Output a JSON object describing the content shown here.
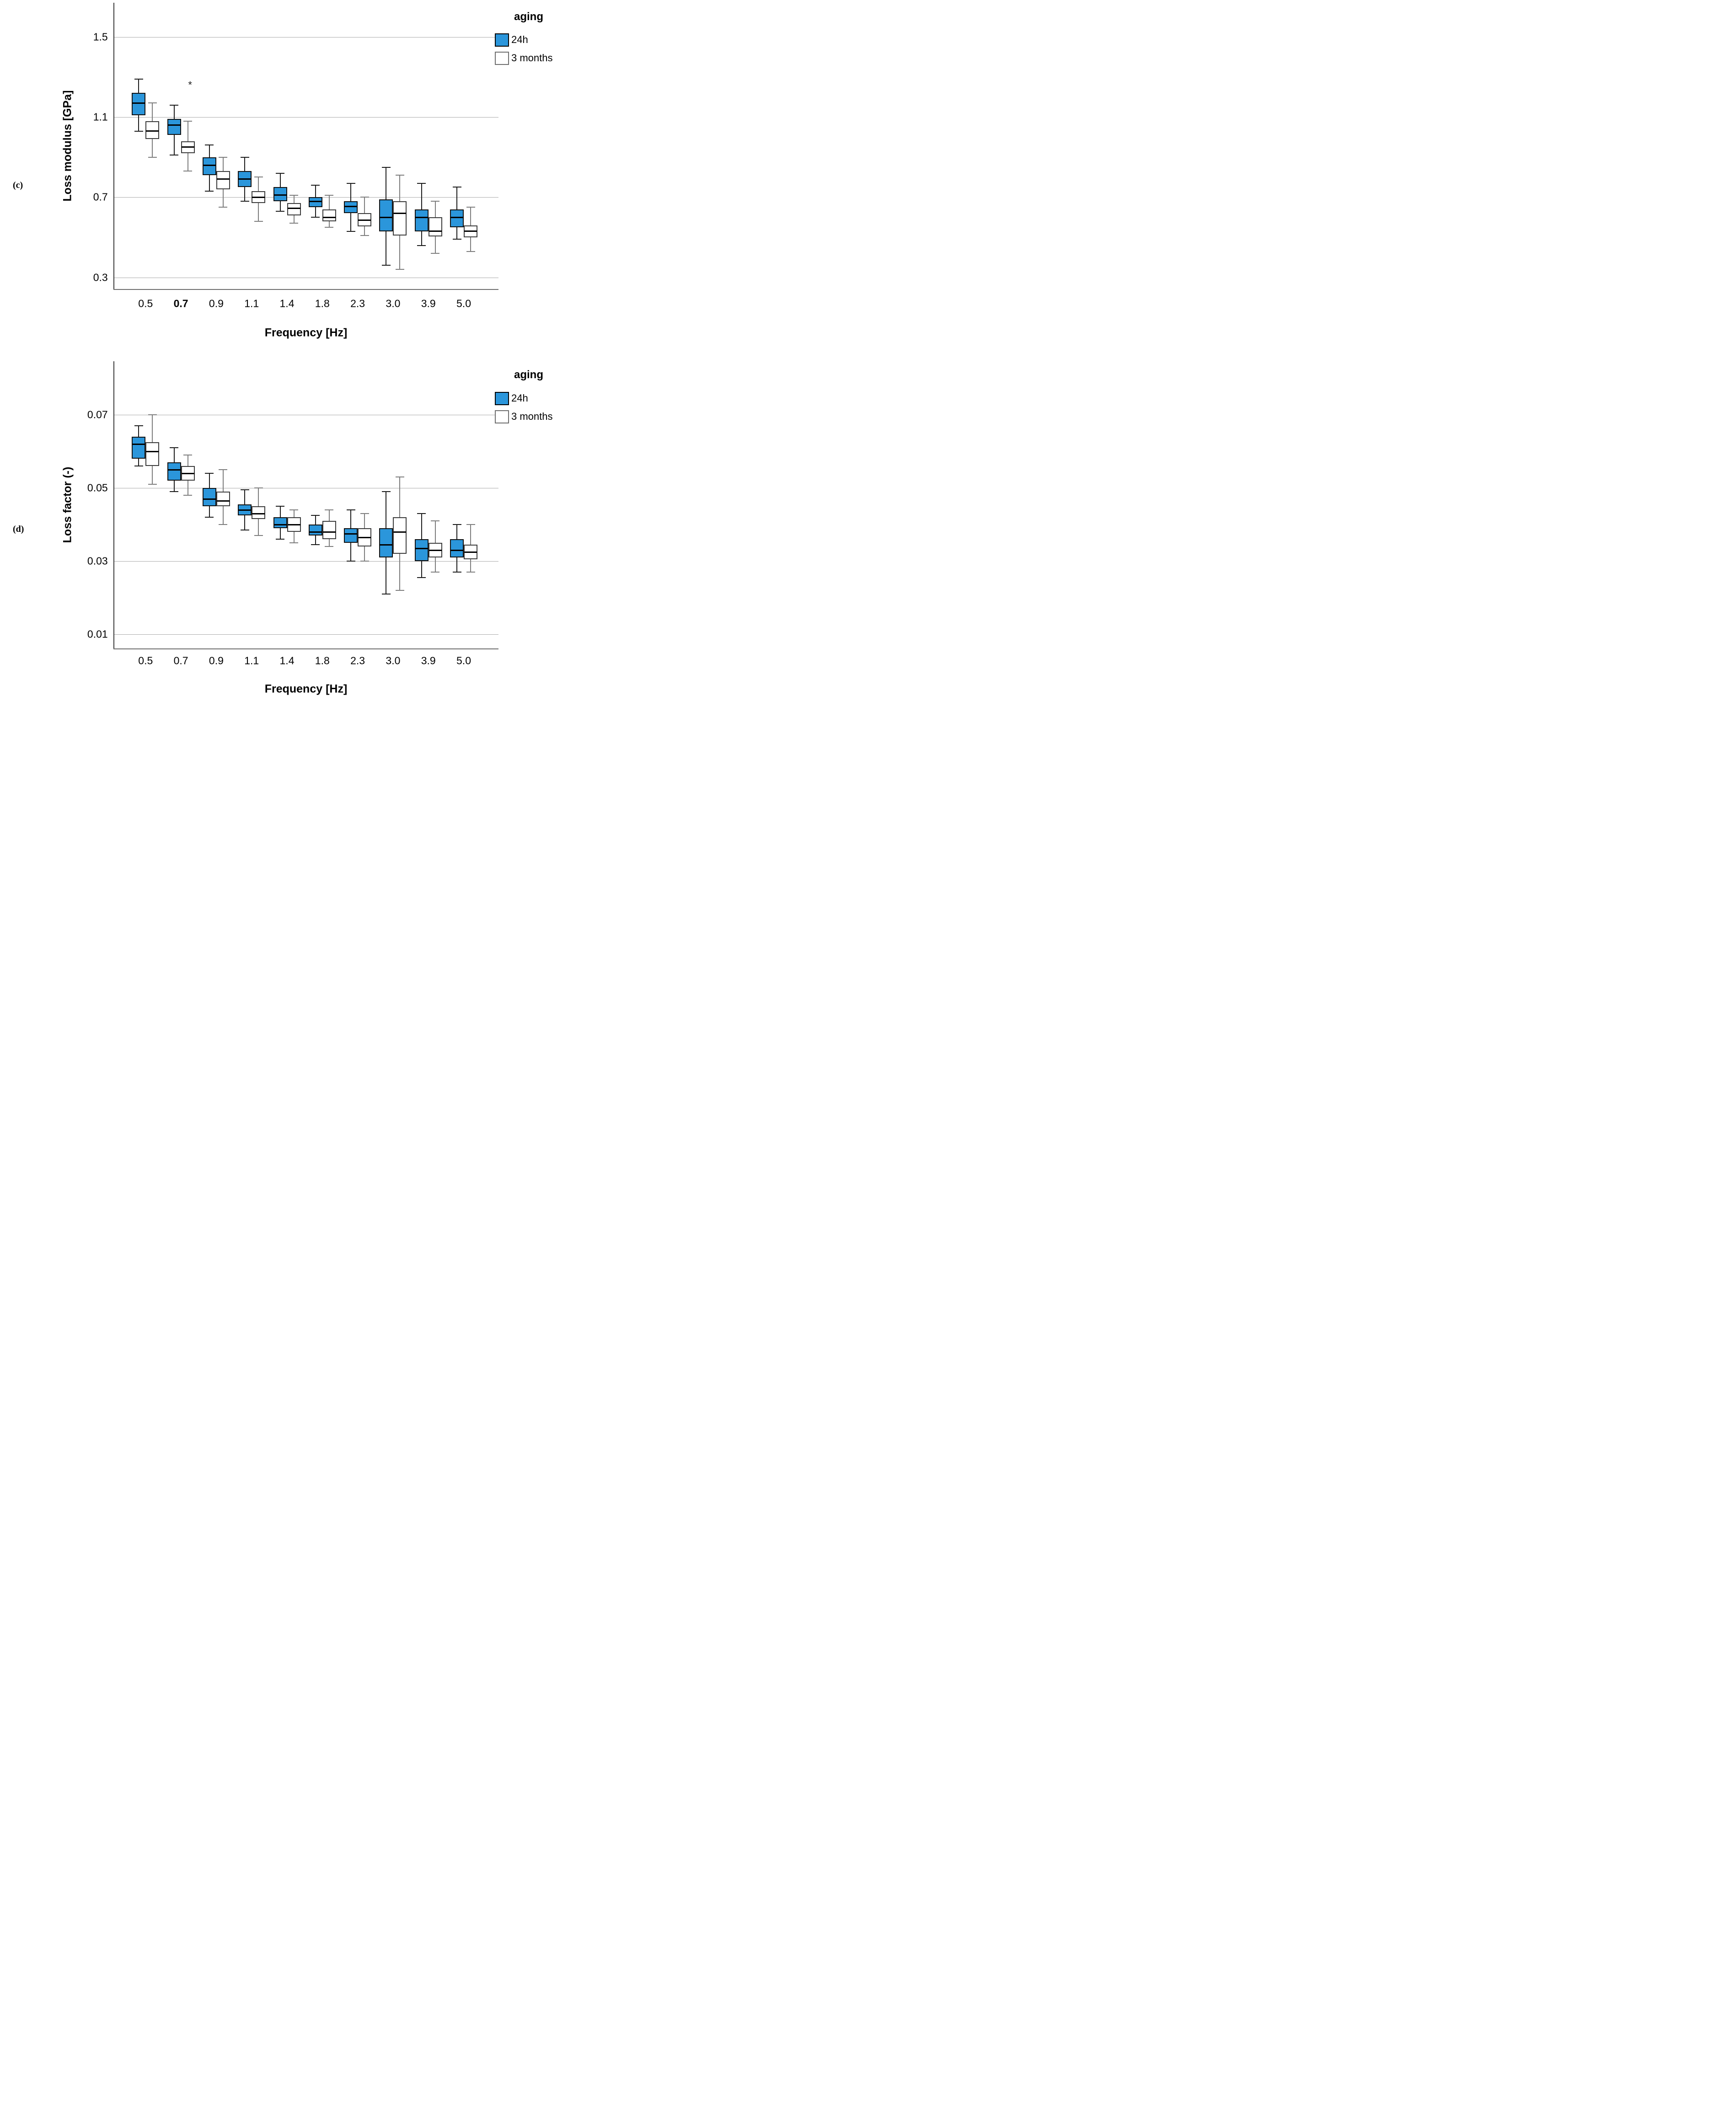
{
  "figure": {
    "type_note": "clustered box plot figure, two panels",
    "accent_blue": "#2B96DB",
    "white_fill": "#FFFFFF",
    "style": {
      "gridline": "#ABABAB",
      "box_border_24h": "#111111",
      "box_border_3_months": "#3c3c3c",
      "stem_24h": "#1b1b1b",
      "stem_3_months": "#7d7d7d",
      "median": "#000000"
    }
  },
  "chart_data": [
    {
      "type": "boxplot",
      "panel_label": "(c)",
      "y_axis": {
        "title": "Loss modulus [GPa]",
        "tick_labels": [
          "1.5",
          "1.1",
          "0.7",
          "0.3"
        ],
        "tick_values": [
          1.5,
          1.1,
          0.7,
          0.3
        ],
        "range": [
          0.25,
          1.67
        ],
        "grid": true
      },
      "x_axis": {
        "title": "Frequency  [Hz]",
        "categories": [
          "0.5",
          "0.7",
          "0.9",
          "1.1",
          "1.4",
          "1.8",
          "2.3",
          "3.0",
          "3.9",
          "5.0"
        ],
        "bold_category": "0.7"
      },
      "legend": {
        "title": "aging",
        "position": "top-right",
        "items": [
          {
            "label": "24h",
            "fill": "#2B96DB"
          },
          {
            "label": "3 months",
            "fill": "#FFFFFF"
          }
        ]
      },
      "annotations": [
        {
          "text": "*",
          "category": "0.7",
          "value": 1.26
        }
      ],
      "series": [
        {
          "name": "24h",
          "fill": "#2B96DB",
          "boxes": [
            {
              "low": 1.03,
              "q1": 1.11,
              "median": 1.17,
              "q3": 1.22,
              "high": 1.29
            },
            {
              "low": 0.91,
              "q1": 1.01,
              "median": 1.06,
              "q3": 1.09,
              "high": 1.16
            },
            {
              "low": 0.73,
              "q1": 0.81,
              "median": 0.86,
              "q3": 0.9,
              "high": 0.96
            },
            {
              "low": 0.68,
              "q1": 0.75,
              "median": 0.79,
              "q3": 0.83,
              "high": 0.9
            },
            {
              "low": 0.63,
              "q1": 0.68,
              "median": 0.71,
              "q3": 0.75,
              "high": 0.82
            },
            {
              "low": 0.6,
              "q1": 0.65,
              "median": 0.68,
              "q3": 0.7,
              "high": 0.76
            },
            {
              "low": 0.53,
              "q1": 0.62,
              "median": 0.655,
              "q3": 0.68,
              "high": 0.77
            },
            {
              "low": 0.36,
              "q1": 0.53,
              "median": 0.6,
              "q3": 0.69,
              "high": 0.85
            },
            {
              "low": 0.46,
              "q1": 0.53,
              "median": 0.6,
              "q3": 0.64,
              "high": 0.77
            },
            {
              "low": 0.49,
              "q1": 0.55,
              "median": 0.6,
              "q3": 0.64,
              "high": 0.75
            }
          ]
        },
        {
          "name": "3 months",
          "fill": "#FFFFFF",
          "boxes": [
            {
              "low": 0.9,
              "q1": 0.99,
              "median": 1.03,
              "q3": 1.08,
              "high": 1.17
            },
            {
              "low": 0.83,
              "q1": 0.92,
              "median": 0.95,
              "q3": 0.98,
              "high": 1.08
            },
            {
              "low": 0.65,
              "q1": 0.74,
              "median": 0.79,
              "q3": 0.83,
              "high": 0.9
            },
            {
              "low": 0.58,
              "q1": 0.67,
              "median": 0.7,
              "q3": 0.73,
              "high": 0.8
            },
            {
              "low": 0.57,
              "q1": 0.61,
              "median": 0.645,
              "q3": 0.67,
              "high": 0.71
            },
            {
              "low": 0.55,
              "q1": 0.58,
              "median": 0.6,
              "q3": 0.64,
              "high": 0.71
            },
            {
              "low": 0.51,
              "q1": 0.555,
              "median": 0.585,
              "q3": 0.62,
              "high": 0.7
            },
            {
              "low": 0.34,
              "q1": 0.51,
              "median": 0.62,
              "q3": 0.68,
              "high": 0.81
            },
            {
              "low": 0.42,
              "q1": 0.505,
              "median": 0.53,
              "q3": 0.6,
              "high": 0.68
            },
            {
              "low": 0.43,
              "q1": 0.5,
              "median": 0.53,
              "q3": 0.56,
              "high": 0.65
            }
          ]
        }
      ]
    },
    {
      "type": "boxplot",
      "panel_label": "(d)",
      "y_axis": {
        "title": "Loss factor (-)",
        "tick_labels": [
          "0.07",
          "0.05",
          "0.03",
          "0.01"
        ],
        "tick_values": [
          0.07,
          0.05,
          0.03,
          0.01
        ],
        "range": [
          0.0075,
          0.0847
        ],
        "grid": true
      },
      "x_axis": {
        "title": "Frequency  [Hz]",
        "categories": [
          "0.5",
          "0.7",
          "0.9",
          "1.1",
          "1.4",
          "1.8",
          "2.3",
          "3.0",
          "3.9",
          "5.0"
        ],
        "bold_category": ""
      },
      "legend": {
        "title": "aging",
        "position": "top-right",
        "items": [
          {
            "label": "24h",
            "fill": "#2B96DB"
          },
          {
            "label": "3 months",
            "fill": "#FFFFFF"
          }
        ]
      },
      "annotations": [],
      "series": [
        {
          "name": "24h",
          "fill": "#2B96DB",
          "boxes": [
            {
              "low": 0.056,
              "q1": 0.058,
              "median": 0.062,
              "q3": 0.064,
              "high": 0.067
            },
            {
              "low": 0.049,
              "q1": 0.052,
              "median": 0.055,
              "q3": 0.057,
              "high": 0.061
            },
            {
              "low": 0.042,
              "q1": 0.045,
              "median": 0.047,
              "q3": 0.05,
              "high": 0.054
            },
            {
              "low": 0.0385,
              "q1": 0.0425,
              "median": 0.044,
              "q3": 0.0455,
              "high": 0.0495
            },
            {
              "low": 0.036,
              "q1": 0.039,
              "median": 0.04,
              "q3": 0.042,
              "high": 0.045
            },
            {
              "low": 0.0345,
              "q1": 0.037,
              "median": 0.038,
              "q3": 0.04,
              "high": 0.0425
            },
            {
              "low": 0.03,
              "q1": 0.035,
              "median": 0.0375,
              "q3": 0.039,
              "high": 0.044
            },
            {
              "low": 0.021,
              "q1": 0.031,
              "median": 0.0345,
              "q3": 0.039,
              "high": 0.049
            },
            {
              "low": 0.0255,
              "q1": 0.03,
              "median": 0.0335,
              "q3": 0.036,
              "high": 0.043
            },
            {
              "low": 0.027,
              "q1": 0.031,
              "median": 0.033,
              "q3": 0.036,
              "high": 0.04
            }
          ]
        },
        {
          "name": "3 months",
          "fill": "#FFFFFF",
          "boxes": [
            {
              "low": 0.051,
              "q1": 0.056,
              "median": 0.06,
              "q3": 0.0625,
              "high": 0.07
            },
            {
              "low": 0.048,
              "q1": 0.052,
              "median": 0.054,
              "q3": 0.056,
              "high": 0.059
            },
            {
              "low": 0.04,
              "q1": 0.045,
              "median": 0.0465,
              "q3": 0.049,
              "high": 0.055
            },
            {
              "low": 0.037,
              "q1": 0.0415,
              "median": 0.043,
              "q3": 0.045,
              "high": 0.05
            },
            {
              "low": 0.035,
              "q1": 0.038,
              "median": 0.04,
              "q3": 0.042,
              "high": 0.044
            },
            {
              "low": 0.034,
              "q1": 0.036,
              "median": 0.038,
              "q3": 0.041,
              "high": 0.044
            },
            {
              "low": 0.03,
              "q1": 0.034,
              "median": 0.0365,
              "q3": 0.039,
              "high": 0.043
            },
            {
              "low": 0.022,
              "q1": 0.032,
              "median": 0.038,
              "q3": 0.042,
              "high": 0.053
            },
            {
              "low": 0.027,
              "q1": 0.031,
              "median": 0.033,
              "q3": 0.035,
              "high": 0.041
            },
            {
              "low": 0.027,
              "q1": 0.0305,
              "median": 0.0325,
              "q3": 0.0345,
              "high": 0.04
            }
          ]
        }
      ]
    }
  ]
}
